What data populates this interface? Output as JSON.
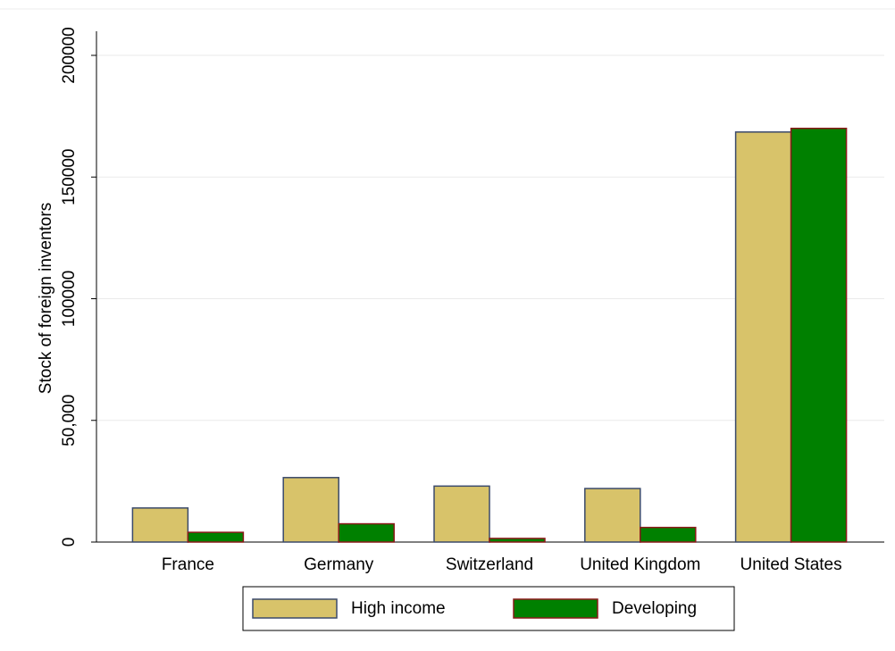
{
  "chart_data": {
    "type": "bar",
    "y_label": "Stock of foreign inventors",
    "categories": [
      "France",
      "Germany",
      "Switzerland",
      "United Kingdom",
      "United States"
    ],
    "series": [
      {
        "name": "High income",
        "color": "#d8c36a",
        "values": [
          14000,
          26500,
          23000,
          22000,
          168500
        ]
      },
      {
        "name": "Developing",
        "color": "#008000",
        "values": [
          4000,
          7500,
          1500,
          6000,
          170000
        ]
      }
    ],
    "ylim": [
      0,
      200000
    ],
    "yticks": [
      0,
      {
        "value": 50000,
        "label": "50,000"
      },
      100000,
      150000,
      200000
    ],
    "grid": true
  }
}
